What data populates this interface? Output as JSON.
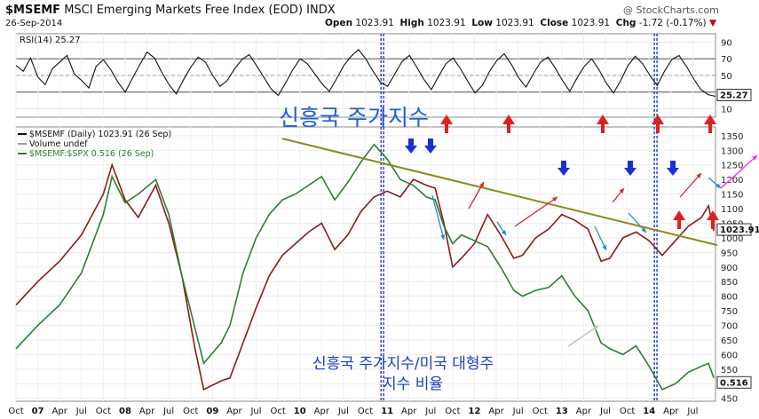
{
  "header": {
    "symbol": "$MSEMF",
    "description": "MSCI Emerging Markets Free Index (EOD)",
    "exchange": "INDX",
    "watermark": "@ StockCharts.com",
    "date": "26-Sep-2014",
    "open_label": "Open",
    "open": "1023.91",
    "high_label": "High",
    "high": "1023.91",
    "low_label": "Low",
    "low": "1023.91",
    "close_label": "Close",
    "close": "1023.91",
    "chg_label": "Chg",
    "chg": "-1.72 (-0.17%)"
  },
  "chart_data": [
    {
      "type": "line",
      "panel": "rsi",
      "legend": "RSI(14) 25.27",
      "y_ticks": [
        10,
        30,
        50,
        70,
        90
      ],
      "ylim": [
        0,
        100
      ],
      "reference_lines": [
        30,
        50,
        70
      ],
      "last_value_label": "25.27",
      "series": [
        {
          "name": "RSI(14)",
          "values": [
            62,
            55,
            71,
            48,
            39,
            58,
            66,
            74,
            52,
            44,
            35,
            61,
            69,
            57,
            42,
            30,
            47,
            63,
            78,
            71,
            54,
            39,
            28,
            45,
            60,
            72,
            66,
            50,
            37,
            44,
            58,
            69,
            75,
            62,
            48,
            34,
            26,
            41,
            57,
            70,
            64,
            52,
            40,
            31,
            46,
            62,
            73,
            81,
            70,
            55,
            42,
            37,
            52,
            67,
            74,
            60,
            45,
            33,
            49,
            64,
            71,
            58,
            43,
            29,
            38,
            55,
            68,
            76,
            63,
            47,
            36,
            52,
            66,
            72,
            59,
            44,
            31,
            47,
            61,
            70,
            57,
            41,
            29,
            44,
            62,
            73,
            64,
            50,
            38,
            55,
            69,
            74,
            61,
            46,
            33,
            27,
            25
          ]
        }
      ]
    },
    {
      "type": "line",
      "panel": "price",
      "legend": [
        "$MSEMF (Daily) 1023.91 (26 Sep)",
        "Volume undef",
        "$MSEMF:$SPX 0.516 (26 Sep)"
      ],
      "y_ticks": [
        450,
        500,
        550,
        600,
        650,
        700,
        750,
        800,
        850,
        900,
        950,
        1000,
        1050,
        1100,
        1150,
        1200,
        1250,
        1300,
        1350
      ],
      "ylim": [
        440,
        1380
      ],
      "x_ticks": [
        "Oct",
        "07",
        "Apr",
        "Jul",
        "Oct",
        "08",
        "Apr",
        "Jul",
        "Oct",
        "09",
        "Apr",
        "Jul",
        "Oct",
        "10",
        "Apr",
        "Jul",
        "Oct",
        "11",
        "Apr",
        "Jul",
        "Oct",
        "12",
        "Apr",
        "Jul",
        "Oct",
        "13",
        "Apr",
        "Jul",
        "Oct",
        "14",
        "Apr",
        "Jul"
      ],
      "last_value_labels": [
        "1023.91",
        "0.516"
      ],
      "series": [
        {
          "name": "$MSEMF (Daily)",
          "color": "#8b1a1a",
          "points": [
            [
              2006.75,
              770
            ],
            [
              2007.0,
              850
            ],
            [
              2007.25,
              920
            ],
            [
              2007.5,
              1010
            ],
            [
              2007.75,
              1150
            ],
            [
              2007.85,
              1250
            ],
            [
              2008.0,
              1130
            ],
            [
              2008.15,
              1070
            ],
            [
              2008.35,
              1180
            ],
            [
              2008.5,
              1050
            ],
            [
              2008.65,
              870
            ],
            [
              2008.8,
              620
            ],
            [
              2008.9,
              480
            ],
            [
              2009.1,
              510
            ],
            [
              2009.2,
              520
            ],
            [
              2009.35,
              640
            ],
            [
              2009.5,
              760
            ],
            [
              2009.65,
              870
            ],
            [
              2009.8,
              940
            ],
            [
              2009.95,
              980
            ],
            [
              2010.1,
              1020
            ],
            [
              2010.25,
              1050
            ],
            [
              2010.4,
              960
            ],
            [
              2010.55,
              1010
            ],
            [
              2010.7,
              1090
            ],
            [
              2010.85,
              1140
            ],
            [
              2011.0,
              1160
            ],
            [
              2011.15,
              1140
            ],
            [
              2011.3,
              1200
            ],
            [
              2011.45,
              1180
            ],
            [
              2011.55,
              1170
            ],
            [
              2011.65,
              1050
            ],
            [
              2011.75,
              900
            ],
            [
              2011.85,
              930
            ],
            [
              2012.0,
              980
            ],
            [
              2012.15,
              1080
            ],
            [
              2012.3,
              1010
            ],
            [
              2012.45,
              930
            ],
            [
              2012.55,
              940
            ],
            [
              2012.7,
              1000
            ],
            [
              2012.85,
              1030
            ],
            [
              2013.0,
              1080
            ],
            [
              2013.15,
              1060
            ],
            [
              2013.3,
              1030
            ],
            [
              2013.45,
              920
            ],
            [
              2013.55,
              930
            ],
            [
              2013.7,
              1000
            ],
            [
              2013.85,
              1020
            ],
            [
              2014.0,
              990
            ],
            [
              2014.15,
              940
            ],
            [
              2014.3,
              990
            ],
            [
              2014.45,
              1040
            ],
            [
              2014.6,
              1070
            ],
            [
              2014.68,
              1110
            ],
            [
              2014.74,
              1023.91
            ]
          ]
        },
        {
          "name": "$MSEMF:$SPX",
          "color": "#2e7d32",
          "points": [
            [
              2006.75,
              620
            ],
            [
              2007.0,
              700
            ],
            [
              2007.25,
              770
            ],
            [
              2007.5,
              880
            ],
            [
              2007.75,
              1080
            ],
            [
              2007.85,
              1210
            ],
            [
              2008.0,
              1120
            ],
            [
              2008.15,
              1150
            ],
            [
              2008.35,
              1200
            ],
            [
              2008.5,
              1080
            ],
            [
              2008.65,
              870
            ],
            [
              2008.8,
              690
            ],
            [
              2008.9,
              570
            ],
            [
              2009.1,
              640
            ],
            [
              2009.2,
              700
            ],
            [
              2009.35,
              880
            ],
            [
              2009.5,
              1000
            ],
            [
              2009.65,
              1080
            ],
            [
              2009.8,
              1130
            ],
            [
              2009.95,
              1150
            ],
            [
              2010.1,
              1180
            ],
            [
              2010.25,
              1210
            ],
            [
              2010.4,
              1130
            ],
            [
              2010.55,
              1190
            ],
            [
              2010.7,
              1260
            ],
            [
              2010.85,
              1320
            ],
            [
              2011.0,
              1270
            ],
            [
              2011.15,
              1200
            ],
            [
              2011.3,
              1180
            ],
            [
              2011.45,
              1140
            ],
            [
              2011.55,
              1130
            ],
            [
              2011.65,
              1040
            ],
            [
              2011.75,
              980
            ],
            [
              2011.85,
              1010
            ],
            [
              2012.0,
              990
            ],
            [
              2012.15,
              970
            ],
            [
              2012.3,
              900
            ],
            [
              2012.45,
              820
            ],
            [
              2012.55,
              800
            ],
            [
              2012.7,
              820
            ],
            [
              2012.85,
              830
            ],
            [
              2013.0,
              870
            ],
            [
              2013.15,
              800
            ],
            [
              2013.3,
              750
            ],
            [
              2013.45,
              640
            ],
            [
              2013.55,
              620
            ],
            [
              2013.7,
              600
            ],
            [
              2013.85,
              630
            ],
            [
              2014.0,
              560
            ],
            [
              2014.15,
              480
            ],
            [
              2014.3,
              500
            ],
            [
              2014.45,
              540
            ],
            [
              2014.6,
              560
            ],
            [
              2014.68,
              570
            ],
            [
              2014.74,
              520
            ]
          ]
        },
        {
          "name": "Trend line",
          "color": "#8a8a1e",
          "points": [
            [
              2009.8,
              1340
            ],
            [
              2014.78,
              975
            ]
          ]
        }
      ],
      "annotations": [
        {
          "text": "신흥국 주가지수",
          "color": "#1e5fd6"
        },
        {
          "text": "신흥국 주가지수/미국 대형주",
          "color": "#1e3fbf"
        },
        {
          "text": "지수 비율",
          "color": "#1e3fbf"
        }
      ]
    }
  ]
}
